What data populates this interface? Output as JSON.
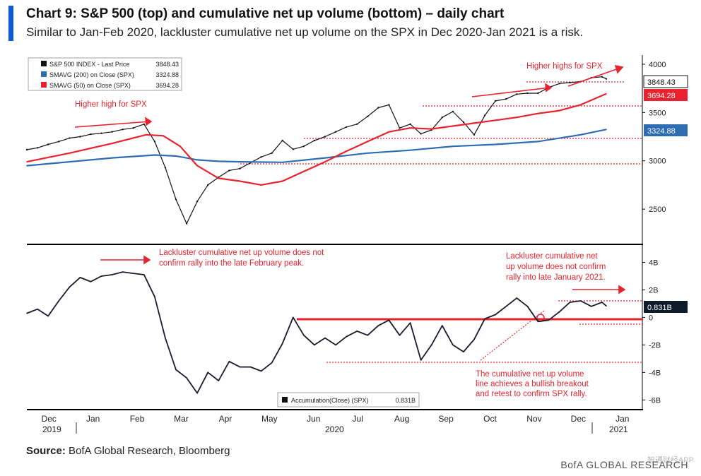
{
  "title": "Chart 9: S&P 500 (top) and cumulative net up volume (bottom) – daily chart",
  "subtitle": "Similar to Jan-Feb 2020, lackluster cumulative net up volume on the SPX in Dec 2020-Jan 2021 is a risk.",
  "source_label": "Source:",
  "source_text": "BofA Global Research, Bloomberg",
  "brand": "BofA GLOBAL RESEARCH",
  "watermark": "智通财经APP",
  "colors": {
    "accent": "#0b5cd6",
    "price": "#111111",
    "sma200": "#2e6db4",
    "sma50": "#e8232e",
    "annotation": "#e8232e",
    "badge_dark": "#0d1b2a"
  },
  "chart_data": [
    {
      "type": "line",
      "panel": "top",
      "ylim": [
        2150,
        4080
      ],
      "ticks": [
        2500,
        3000,
        3500,
        4000
      ],
      "tick_labels": [
        "2500",
        "3000",
        "3500",
        "4000"
      ],
      "x_range": [
        0,
        14.0
      ],
      "legend": {
        "placement": "top-left",
        "entries": [
          {
            "name": "S&P 500 INDEX - Last Price",
            "value": "3848.43",
            "color": "#111111"
          },
          {
            "name": "SMAVG (200) on Close (SPX)",
            "value": "3324.88",
            "color": "#2e6db4"
          },
          {
            "name": "SMAVG (50) on Close (SPX)",
            "value": "3694.28",
            "color": "#e8232e"
          }
        ]
      },
      "badges": [
        {
          "text": "3848.43",
          "value": 3848.43,
          "style": "outline"
        },
        {
          "text": "3694.28",
          "value": 3694.28,
          "style": "red"
        },
        {
          "text": "3324.88",
          "value": 3324.88,
          "style": "blue"
        }
      ],
      "series": [
        {
          "name": "S&P 500 INDEX",
          "color": "#111111",
          "x": [
            0,
            0.25,
            0.5,
            0.75,
            1,
            1.25,
            1.5,
            1.75,
            2,
            2.25,
            2.5,
            2.75,
            3,
            3.25,
            3.5,
            3.75,
            4,
            4.25,
            4.5,
            4.75,
            5,
            5.25,
            5.5,
            5.75,
            6,
            6.25,
            6.5,
            6.75,
            7,
            7.25,
            7.5,
            7.75,
            8,
            8.25,
            8.5,
            8.75,
            9,
            9.25,
            9.5,
            9.75,
            10,
            10.25,
            10.5,
            10.75,
            11,
            11.25,
            11.5,
            11.75,
            12,
            12.25,
            12.5,
            12.75,
            13,
            13.25,
            13.5,
            13.6
          ],
          "y": [
            3115,
            3135,
            3170,
            3200,
            3235,
            3250,
            3275,
            3285,
            3300,
            3325,
            3340,
            3380,
            3200,
            2930,
            2600,
            2350,
            2580,
            2750,
            2830,
            2900,
            2920,
            2980,
            3040,
            3080,
            3210,
            3120,
            3150,
            3210,
            3250,
            3300,
            3350,
            3380,
            3460,
            3550,
            3580,
            3340,
            3380,
            3280,
            3320,
            3450,
            3510,
            3400,
            3270,
            3470,
            3620,
            3640,
            3690,
            3700,
            3700,
            3760,
            3800,
            3810,
            3820,
            3860,
            3870,
            3848
          ]
        },
        {
          "name": "SMAVG (200)",
          "color": "#2e6db4",
          "x": [
            0,
            1,
            2,
            3,
            3.5,
            4,
            4.5,
            5,
            6,
            7,
            8,
            9,
            10,
            11,
            12,
            13,
            13.6
          ],
          "y": [
            2950,
            2990,
            3030,
            3060,
            3050,
            3010,
            2995,
            2990,
            2985,
            3030,
            3080,
            3110,
            3150,
            3170,
            3200,
            3270,
            3324.88
          ]
        },
        {
          "name": "SMAVG (50)",
          "color": "#e8232e",
          "x": [
            0,
            1,
            2,
            2.8,
            3.2,
            3.6,
            4,
            4.5,
            5,
            5.5,
            6,
            6.5,
            7,
            7.5,
            8,
            8.5,
            9,
            9.5,
            10,
            10.5,
            11,
            11.5,
            12,
            12.5,
            13,
            13.6
          ],
          "y": [
            2990,
            3080,
            3180,
            3270,
            3260,
            3150,
            2950,
            2820,
            2790,
            2750,
            2790,
            2890,
            2990,
            3100,
            3200,
            3300,
            3340,
            3330,
            3360,
            3390,
            3420,
            3450,
            3490,
            3520,
            3580,
            3694.28
          ]
        }
      ]
    },
    {
      "type": "line",
      "panel": "bottom",
      "ylim": [
        -6.6,
        5.0
      ],
      "ticks": [
        4,
        2,
        0,
        -2,
        -4,
        -6
      ],
      "tick_labels": [
        "4B",
        "2B",
        "0",
        "-2B",
        "-4B",
        "-6B"
      ],
      "x_range": [
        0,
        14.0
      ],
      "legend": {
        "placement": "bottom-center",
        "entries": [
          {
            "name": "Accumulation(Close) (SPX)",
            "value": "0.831B",
            "color": "#111111"
          }
        ]
      },
      "badges": [
        {
          "text": "0.831B",
          "value": 0.831,
          "style": "dark"
        }
      ],
      "series": [
        {
          "name": "Accumulation(Close) (SPX)",
          "color": "#1a1a2e",
          "x": [
            0,
            0.25,
            0.5,
            0.75,
            1,
            1.25,
            1.5,
            1.75,
            2,
            2.25,
            2.5,
            2.75,
            3,
            3.25,
            3.5,
            3.75,
            4,
            4.25,
            4.5,
            4.75,
            5,
            5.25,
            5.5,
            5.75,
            6,
            6.25,
            6.5,
            6.75,
            7,
            7.25,
            7.5,
            7.75,
            8,
            8.25,
            8.5,
            8.75,
            9,
            9.25,
            9.5,
            9.75,
            10,
            10.25,
            10.5,
            10.75,
            11,
            11.25,
            11.5,
            11.75,
            12,
            12.25,
            12.5,
            12.75,
            13,
            13.25,
            13.5,
            13.6
          ],
          "y": [
            0.3,
            0.6,
            0.1,
            1.2,
            2.2,
            2.9,
            2.6,
            3.0,
            3.1,
            3.3,
            3.2,
            3.1,
            1.5,
            -1.5,
            -3.8,
            -4.4,
            -5.5,
            -4.0,
            -4.6,
            -3.2,
            -3.6,
            -3.6,
            -3.9,
            -3.3,
            -1.9,
            0.0,
            -1.3,
            -2.0,
            -1.5,
            -2.0,
            -1.4,
            -1.0,
            -1.3,
            -0.6,
            -0.2,
            -1.3,
            -0.4,
            -3.1,
            -2.0,
            -0.6,
            -2.0,
            -2.5,
            -1.6,
            -0.1,
            0.2,
            0.8,
            1.4,
            0.8,
            -0.3,
            -0.2,
            0.4,
            1.1,
            1.2,
            0.8,
            1.1,
            0.831
          ]
        }
      ]
    }
  ],
  "x_axis": {
    "months": [
      "Dec",
      "Jan",
      "Feb",
      "Mar",
      "Apr",
      "May",
      "Jun",
      "Jul",
      "Aug",
      "Sep",
      "Oct",
      "Nov",
      "Dec",
      "Jan"
    ],
    "years": [
      "2019",
      "2020",
      "2021"
    ]
  },
  "annotations": {
    "higher_high_spx": "Higher high for SPX",
    "higher_highs_spx": "Higher highs for SPX",
    "lackluster_feb_1": "Lackluster cumulative net up volume does not",
    "lackluster_feb_2": "confirm rally into the late February peak.",
    "lackluster_jan_1": "Lackluster cumulative net",
    "lackluster_jan_2": "up volume does not confirm",
    "lackluster_jan_3": "rally into late January 2021.",
    "breakout_1": "The cumulative net up volume",
    "breakout_2": "line achieves a bullish breakout",
    "breakout_3": "and retest to confirm SPX rally."
  }
}
